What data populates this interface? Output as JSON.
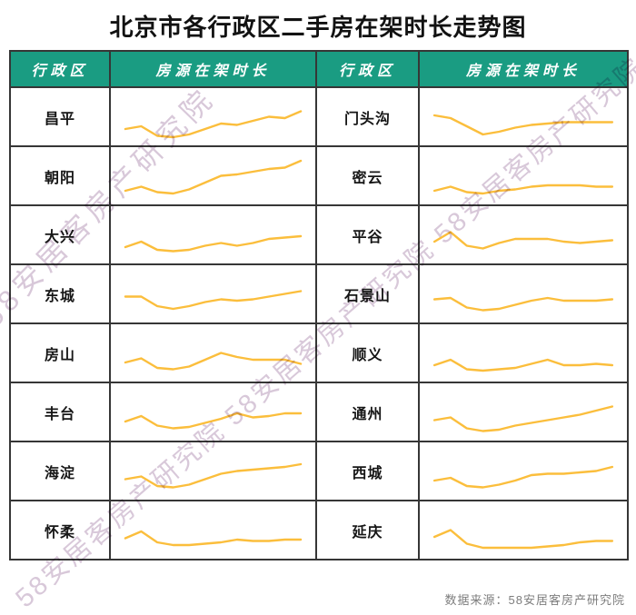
{
  "title": "北京市各行政区二手房在架时长走势图",
  "source_note": "数据来源：58安居客房产研究院",
  "watermark": {
    "text": "58安居客房产研究院",
    "color": "#d2bfd3"
  },
  "colors": {
    "header_bg": "#1a9c82",
    "header_text": "#ffffff",
    "sparkline": "#fbbe3c",
    "table_border": "#363636",
    "source_text": "#7d7d7d"
  },
  "table": {
    "headers": [
      "行政区",
      "房源在架时长",
      "行政区",
      "房源在架时长"
    ],
    "rows": [
      [
        "昌平",
        "门头沟"
      ],
      [
        "朝阳",
        "密云"
      ],
      [
        "大兴",
        "平谷"
      ],
      [
        "东城",
        "石景山"
      ],
      [
        "房山",
        "顺义"
      ],
      [
        "丰台",
        "通州"
      ],
      [
        "海淀",
        "西城"
      ],
      [
        "怀柔",
        "延庆"
      ]
    ]
  },
  "chart_data": {
    "type": "line",
    "title": "北京市各行政区二手房在架时长走势图",
    "note": "每行为无坐标轴迷你走势图（sparkline），数值为相对在架时长指数（由像素位置估读，无刻度标注）",
    "x_points": 12,
    "legend_position": "none",
    "grid": false,
    "series": [
      {
        "name": "昌平",
        "values": [
          30,
          32,
          25,
          24,
          26,
          30,
          34,
          33,
          36,
          39,
          38,
          43
        ]
      },
      {
        "name": "朝阳",
        "values": [
          28,
          31,
          27,
          26,
          29,
          34,
          39,
          40,
          42,
          44,
          45,
          50
        ]
      },
      {
        "name": "大兴",
        "values": [
          30,
          34,
          28,
          27,
          28,
          31,
          33,
          31,
          33,
          36,
          37,
          38
        ]
      },
      {
        "name": "东城",
        "values": [
          37,
          37,
          30,
          28,
          30,
          33,
          35,
          34,
          35,
          37,
          39,
          41
        ]
      },
      {
        "name": "房山",
        "values": [
          32,
          35,
          28,
          27,
          29,
          34,
          39,
          36,
          34,
          34,
          34,
          31
        ]
      },
      {
        "name": "丰台",
        "values": [
          32,
          36,
          29,
          27,
          28,
          31,
          34,
          38,
          35,
          36,
          38,
          38
        ]
      },
      {
        "name": "海淀",
        "values": [
          33,
          35,
          28,
          27,
          29,
          33,
          37,
          39,
          40,
          41,
          42,
          44
        ]
      },
      {
        "name": "怀柔",
        "values": [
          33,
          38,
          30,
          28,
          28,
          29,
          30,
          32,
          31,
          31,
          32,
          32
        ]
      },
      {
        "name": "门头沟",
        "values": [
          40,
          38,
          32,
          26,
          28,
          31,
          33,
          34,
          35,
          35,
          35,
          35
        ]
      },
      {
        "name": "密云",
        "values": [
          28,
          31,
          27,
          26,
          28,
          29,
          31,
          32,
          32,
          32,
          31,
          31
        ]
      },
      {
        "name": "平谷",
        "values": [
          34,
          41,
          31,
          29,
          33,
          36,
          36,
          36,
          34,
          33,
          34,
          35
        ]
      },
      {
        "name": "石景山",
        "values": [
          35,
          36,
          29,
          27,
          28,
          31,
          34,
          36,
          34,
          34,
          34,
          35
        ]
      },
      {
        "name": "顺义",
        "values": [
          30,
          34,
          27,
          26,
          27,
          28,
          31,
          34,
          30,
          30,
          31,
          30
        ]
      },
      {
        "name": "通州",
        "values": [
          33,
          35,
          27,
          25,
          26,
          29,
          31,
          33,
          35,
          37,
          40,
          43
        ]
      },
      {
        "name": "西城",
        "values": [
          32,
          34,
          28,
          27,
          29,
          32,
          36,
          37,
          37,
          38,
          39,
          42
        ]
      },
      {
        "name": "延庆",
        "values": [
          34,
          39,
          29,
          26,
          26,
          26,
          26,
          27,
          28,
          30,
          31,
          31
        ]
      }
    ]
  }
}
